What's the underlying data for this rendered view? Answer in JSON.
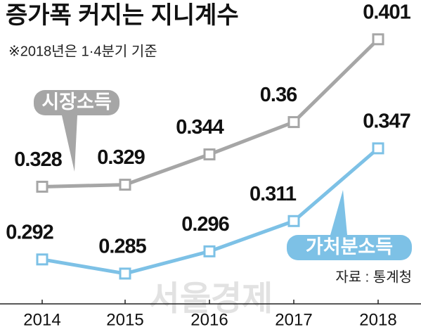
{
  "chart_data": {
    "type": "line",
    "title": "증가폭 커지는 지니계수",
    "subtitle": "※2018년은 1·4분기 기준",
    "source": "자료 : 통계청",
    "watermark": "서울경제",
    "categories": [
      "2014",
      "2015",
      "2016",
      "2017",
      "2018"
    ],
    "series": [
      {
        "name": "시장소득",
        "color": "#a6a6a6",
        "values": [
          0.328,
          0.329,
          0.344,
          0.36,
          0.401
        ]
      },
      {
        "name": "가처분소득",
        "color": "#7dc1e6",
        "values": [
          0.292,
          0.285,
          0.296,
          0.311,
          0.347
        ]
      }
    ],
    "ylim": [
      0.27,
      0.41
    ]
  }
}
